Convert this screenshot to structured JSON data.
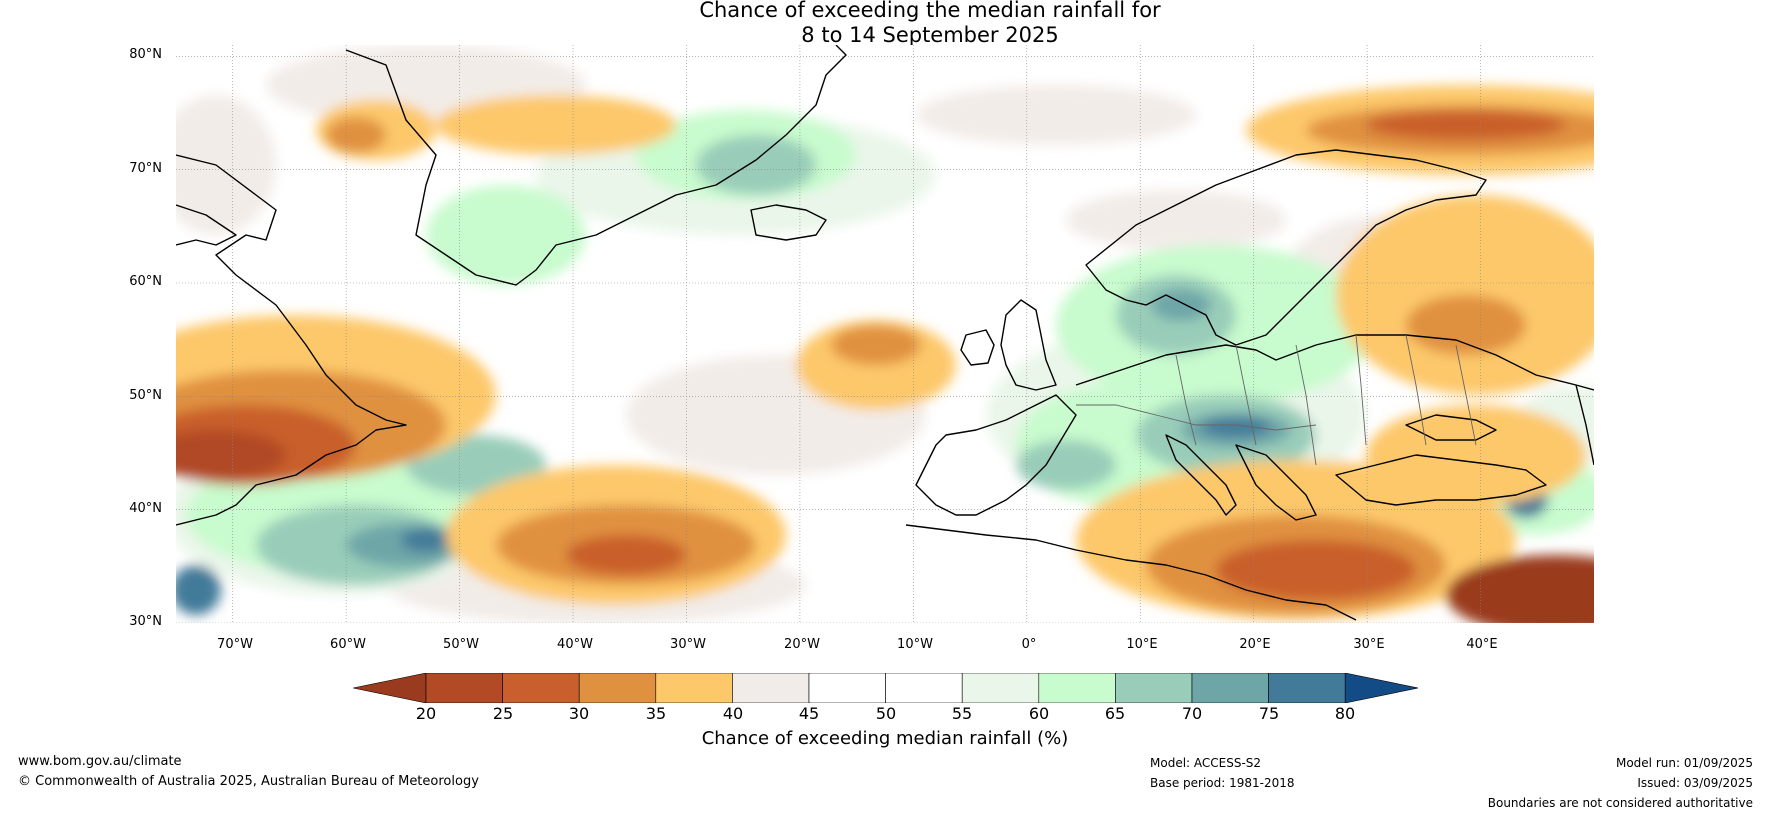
{
  "title": {
    "line1": "Chance of exceeding the median rainfall for",
    "line2": "8 to 14 September 2025"
  },
  "map": {
    "lat_labels": [
      "80°N",
      "70°N",
      "60°N",
      "50°N",
      "40°N",
      "30°N"
    ],
    "lon_labels": [
      "70°W",
      "60°W",
      "50°W",
      "40°W",
      "30°W",
      "20°W",
      "10°W",
      "0°",
      "10°E",
      "20°E",
      "30°E",
      "40°E"
    ],
    "lon_range": [
      -75,
      50
    ],
    "lat_range": [
      30,
      81
    ]
  },
  "colorbar": {
    "title": "Chance of exceeding median rainfall (%)",
    "ticks": [
      "20",
      "25",
      "30",
      "35",
      "40",
      "45",
      "50",
      "55",
      "60",
      "65",
      "70",
      "75",
      "80"
    ],
    "colors": [
      "#9a3a1e",
      "#b14a25",
      "#c95f2c",
      "#e0913f",
      "#fdc86a",
      "#f2ece8",
      "#ffffff",
      "#ffffff",
      "#eaf6ea",
      "#c8fbcd",
      "#99cdb9",
      "#6ea6a8",
      "#427a9a",
      "#134b86"
    ]
  },
  "footer": {
    "website": "www.bom.gov.au/climate",
    "copyright": "© Commonwealth of Australia 2025, Australian Bureau of Meteorology",
    "model": "Model: ACCESS-S2",
    "base_period": "Base period: 1981-2018",
    "model_run": "Model run: 01/09/2025",
    "issued": "Issued: 03/09/2025",
    "disclaimer": "Boundaries are not considered authoritative"
  }
}
